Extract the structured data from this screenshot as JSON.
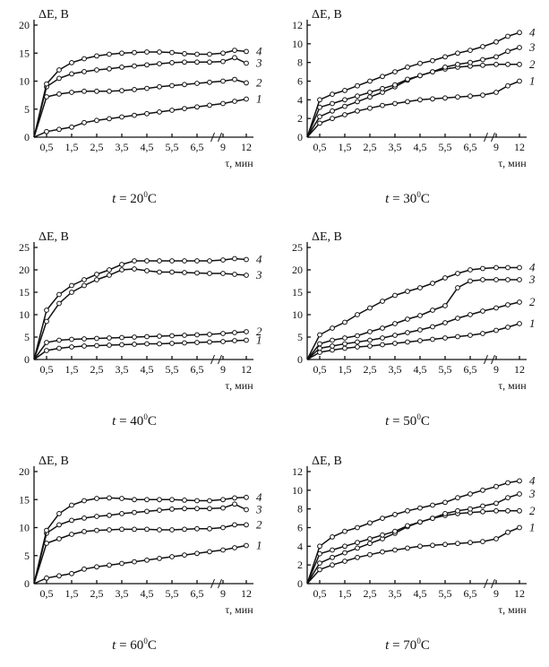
{
  "chart_data": [
    {
      "type": "line",
      "ylabel": "ΔE, В",
      "xlabel": "τ, мин",
      "caption": {
        "var": "t",
        "eq": " = 20",
        "sup": "0",
        "unit": "C"
      },
      "ylim": [
        0,
        20
      ],
      "yticks": [
        "0",
        "5",
        "10",
        "15",
        "20"
      ],
      "xticks": [
        "0,5",
        "1,5",
        "2,5",
        "3,5",
        "4,5",
        "5,5",
        "6,5",
        "9",
        "12"
      ],
      "x": [
        0,
        0.5,
        1,
        1.5,
        2,
        2.5,
        3,
        3.5,
        4,
        4.5,
        5,
        5.5,
        6,
        6.5,
        7,
        9,
        10.5,
        12
      ],
      "series": [
        {
          "label": "1",
          "values": [
            0,
            1,
            1.4,
            1.8,
            2.6,
            3.0,
            3.3,
            3.6,
            3.9,
            4.2,
            4.5,
            4.8,
            5.1,
            5.4,
            5.7,
            6.0,
            6.4,
            6.8
          ]
        },
        {
          "label": "2",
          "values": [
            0,
            7.2,
            7.7,
            8.0,
            8.2,
            8.2,
            8.2,
            8.3,
            8.5,
            8.7,
            9.0,
            9.2,
            9.4,
            9.6,
            9.8,
            10.0,
            10.3,
            9.7
          ]
        },
        {
          "label": "3",
          "values": [
            0,
            9.0,
            10.5,
            11.3,
            11.7,
            12.0,
            12.2,
            12.5,
            12.7,
            12.9,
            13.1,
            13.3,
            13.4,
            13.4,
            13.4,
            13.5,
            14.2,
            13.2
          ]
        },
        {
          "label": "4",
          "values": [
            0,
            9.5,
            12.0,
            13.3,
            14.0,
            14.5,
            14.8,
            15.0,
            15.1,
            15.2,
            15.2,
            15.1,
            14.9,
            14.8,
            14.8,
            15.0,
            15.5,
            15.3
          ]
        }
      ]
    },
    {
      "type": "line",
      "ylabel": "ΔE, В",
      "xlabel": "τ, мин",
      "caption": {
        "var": "t",
        "eq": " = 30",
        "sup": "0",
        "unit": "C"
      },
      "ylim": [
        0,
        12
      ],
      "yticks": [
        "0",
        "2",
        "4",
        "6",
        "8",
        "10",
        "12"
      ],
      "xticks": [
        "0,5",
        "1,5",
        "2,5",
        "3,5",
        "4,5",
        "5,5",
        "6,5",
        "9",
        "12"
      ],
      "x": [
        0,
        0.5,
        1,
        1.5,
        2,
        2.5,
        3,
        3.5,
        4,
        4.5,
        5,
        5.5,
        6,
        6.5,
        7,
        9,
        10.5,
        12
      ],
      "series": [
        {
          "label": "1",
          "values": [
            0,
            1.5,
            2.0,
            2.4,
            2.8,
            3.1,
            3.4,
            3.6,
            3.8,
            4.0,
            4.1,
            4.2,
            4.3,
            4.4,
            4.5,
            4.8,
            5.5,
            6.0
          ]
        },
        {
          "label": "2",
          "values": [
            0,
            2.2,
            2.8,
            3.3,
            3.8,
            4.3,
            4.8,
            5.4,
            6.1,
            6.6,
            7.0,
            7.3,
            7.5,
            7.6,
            7.7,
            7.8,
            7.8,
            7.8
          ]
        },
        {
          "label": "3",
          "values": [
            0,
            3.2,
            3.6,
            4.0,
            4.4,
            4.8,
            5.2,
            5.6,
            6.2,
            6.6,
            7.0,
            7.5,
            7.8,
            8.0,
            8.3,
            8.6,
            9.2,
            9.6
          ]
        },
        {
          "label": "4",
          "values": [
            0,
            4.0,
            4.6,
            5.0,
            5.5,
            6.0,
            6.5,
            7.0,
            7.5,
            7.9,
            8.2,
            8.6,
            9.0,
            9.3,
            9.7,
            10.2,
            10.8,
            11.2
          ]
        }
      ]
    },
    {
      "type": "line",
      "ylabel": "ΔE, В",
      "xlabel": "τ, мин",
      "caption": {
        "var": "t",
        "eq": " = 40",
        "sup": "0",
        "unit": "C"
      },
      "ylim": [
        0,
        25
      ],
      "yticks": [
        "0",
        "5",
        "10",
        "15",
        "20",
        "25"
      ],
      "xticks": [
        "0,5",
        "1,5",
        "2,5",
        "3,5",
        "4,5",
        "5,5",
        "6,5",
        "9",
        "12"
      ],
      "x": [
        0,
        0.5,
        1,
        1.5,
        2,
        2.5,
        3,
        3.5,
        4,
        4.5,
        5,
        5.5,
        6,
        6.5,
        7,
        9,
        10.5,
        12
      ],
      "series": [
        {
          "label": "1",
          "values": [
            0,
            2.0,
            2.5,
            2.8,
            3.0,
            3.1,
            3.2,
            3.3,
            3.4,
            3.5,
            3.5,
            3.6,
            3.7,
            3.8,
            3.9,
            4.0,
            4.2,
            4.3
          ]
        },
        {
          "label": "2",
          "values": [
            0,
            3.8,
            4.3,
            4.5,
            4.6,
            4.7,
            4.8,
            4.9,
            5.0,
            5.1,
            5.2,
            5.3,
            5.4,
            5.5,
            5.6,
            5.8,
            6.0,
            6.2
          ]
        },
        {
          "label": "3",
          "values": [
            0,
            8.5,
            12.5,
            15.0,
            16.5,
            17.8,
            18.8,
            20.0,
            20.2,
            19.8,
            19.5,
            19.5,
            19.4,
            19.3,
            19.2,
            19.2,
            19.0,
            18.8
          ]
        },
        {
          "label": "4",
          "values": [
            0,
            11.0,
            14.5,
            16.5,
            17.8,
            19.0,
            20.0,
            21.2,
            22.0,
            22.0,
            22.0,
            22.0,
            22.0,
            22.0,
            22.0,
            22.2,
            22.5,
            22.3
          ]
        }
      ]
    },
    {
      "type": "line",
      "ylabel": "ΔE, В",
      "xlabel": "τ, мин",
      "caption": {
        "var": "t",
        "eq": " = 50",
        "sup": "0",
        "unit": "C"
      },
      "ylim": [
        0,
        25
      ],
      "yticks": [
        "0",
        "5",
        "10",
        "15",
        "20",
        "25"
      ],
      "xticks": [
        "0,5",
        "1,5",
        "2,5",
        "3,5",
        "4,5",
        "5,5",
        "6,5",
        "9",
        "12"
      ],
      "x": [
        0,
        0.5,
        1,
        1.5,
        2,
        2.5,
        3,
        3.5,
        4,
        4.5,
        5,
        5.5,
        6,
        6.5,
        7,
        9,
        10.5,
        12
      ],
      "series": [
        {
          "label": "1",
          "values": [
            0,
            1.6,
            2.1,
            2.5,
            2.8,
            3.0,
            3.3,
            3.6,
            3.9,
            4.2,
            4.5,
            4.8,
            5.1,
            5.4,
            5.8,
            6.5,
            7.2,
            8.0
          ]
        },
        {
          "label": "2",
          "values": [
            0,
            2.5,
            3.0,
            3.5,
            3.9,
            4.3,
            4.8,
            5.4,
            6.0,
            6.6,
            7.3,
            8.2,
            9.2,
            10.0,
            10.8,
            11.5,
            12.2,
            12.8
          ]
        },
        {
          "label": "3",
          "values": [
            0,
            3.5,
            4.3,
            4.8,
            5.3,
            6.2,
            7.0,
            8.0,
            9.0,
            9.8,
            11.0,
            12.0,
            16.0,
            17.5,
            17.8,
            17.8,
            17.8,
            17.8
          ]
        },
        {
          "label": "4",
          "values": [
            0,
            5.5,
            7.0,
            8.3,
            10.0,
            11.5,
            13.0,
            14.3,
            15.2,
            16.0,
            17.0,
            18.2,
            19.2,
            20.0,
            20.3,
            20.5,
            20.5,
            20.5
          ]
        }
      ]
    },
    {
      "type": "line",
      "ylabel": "ΔE, В",
      "xlabel": "τ, мин",
      "caption": {
        "var": "t",
        "eq": " = 60",
        "sup": "0",
        "unit": "C"
      },
      "ylim": [
        0,
        20
      ],
      "yticks": [
        "0",
        "5",
        "10",
        "15",
        "20"
      ],
      "xticks": [
        "0,5",
        "1,5",
        "2,5",
        "3,5",
        "4,5",
        "5,5",
        "6,5",
        "9",
        "12"
      ],
      "x": [
        0,
        0.5,
        1,
        1.5,
        2,
        2.5,
        3,
        3.5,
        4,
        4.5,
        5,
        5.5,
        6,
        6.5,
        7,
        9,
        10.5,
        12
      ],
      "series": [
        {
          "label": "1",
          "values": [
            0,
            1,
            1.4,
            1.8,
            2.6,
            3.0,
            3.3,
            3.6,
            3.9,
            4.2,
            4.5,
            4.8,
            5.1,
            5.4,
            5.7,
            6.0,
            6.4,
            6.8
          ]
        },
        {
          "label": "2",
          "values": [
            0,
            7.2,
            8.0,
            8.8,
            9.3,
            9.5,
            9.6,
            9.7,
            9.7,
            9.7,
            9.6,
            9.6,
            9.7,
            9.8,
            9.8,
            10.0,
            10.5,
            10.5
          ]
        },
        {
          "label": "3",
          "values": [
            0,
            9.0,
            10.5,
            11.3,
            11.7,
            12.0,
            12.2,
            12.5,
            12.7,
            12.9,
            13.1,
            13.3,
            13.4,
            13.4,
            13.4,
            13.5,
            14.2,
            13.2
          ]
        },
        {
          "label": "4",
          "values": [
            0,
            9.5,
            12.5,
            14.0,
            14.8,
            15.2,
            15.3,
            15.2,
            15.0,
            15.0,
            15.0,
            15.0,
            14.9,
            14.8,
            14.8,
            15.0,
            15.3,
            15.4
          ]
        }
      ]
    },
    {
      "type": "line",
      "ylabel": "ΔE, В",
      "xlabel": "τ, мин",
      "caption": {
        "var": "t",
        "eq": " = 70",
        "sup": "0",
        "unit": "C"
      },
      "ylim": [
        0,
        12
      ],
      "yticks": [
        "0",
        "2",
        "4",
        "6",
        "8",
        "10",
        "12"
      ],
      "xticks": [
        "0,5",
        "1,5",
        "2,5",
        "3,5",
        "4,5",
        "5,5",
        "6,5",
        "9",
        "12"
      ],
      "x": [
        0,
        0.5,
        1,
        1.5,
        2,
        2.5,
        3,
        3.5,
        4,
        4.5,
        5,
        5.5,
        6,
        6.5,
        7,
        9,
        10.5,
        12
      ],
      "series": [
        {
          "label": "1",
          "values": [
            0,
            1.5,
            2.0,
            2.4,
            2.8,
            3.1,
            3.4,
            3.6,
            3.8,
            4.0,
            4.1,
            4.2,
            4.3,
            4.4,
            4.5,
            4.8,
            5.5,
            6.0
          ]
        },
        {
          "label": "2",
          "values": [
            0,
            2.2,
            2.8,
            3.3,
            3.8,
            4.3,
            4.8,
            5.4,
            6.1,
            6.6,
            7.0,
            7.3,
            7.5,
            7.6,
            7.7,
            7.8,
            7.8,
            7.8
          ]
        },
        {
          "label": "3",
          "values": [
            0,
            3.2,
            3.6,
            4.0,
            4.4,
            4.8,
            5.2,
            5.6,
            6.2,
            6.6,
            7.0,
            7.5,
            7.8,
            8.0,
            8.3,
            8.6,
            9.2,
            9.6
          ]
        },
        {
          "label": "4",
          "values": [
            0,
            4.0,
            5.0,
            5.6,
            6.0,
            6.5,
            7.0,
            7.4,
            7.8,
            8.1,
            8.4,
            8.7,
            9.2,
            9.6,
            10.0,
            10.4,
            10.8,
            11.0
          ]
        }
      ]
    }
  ]
}
